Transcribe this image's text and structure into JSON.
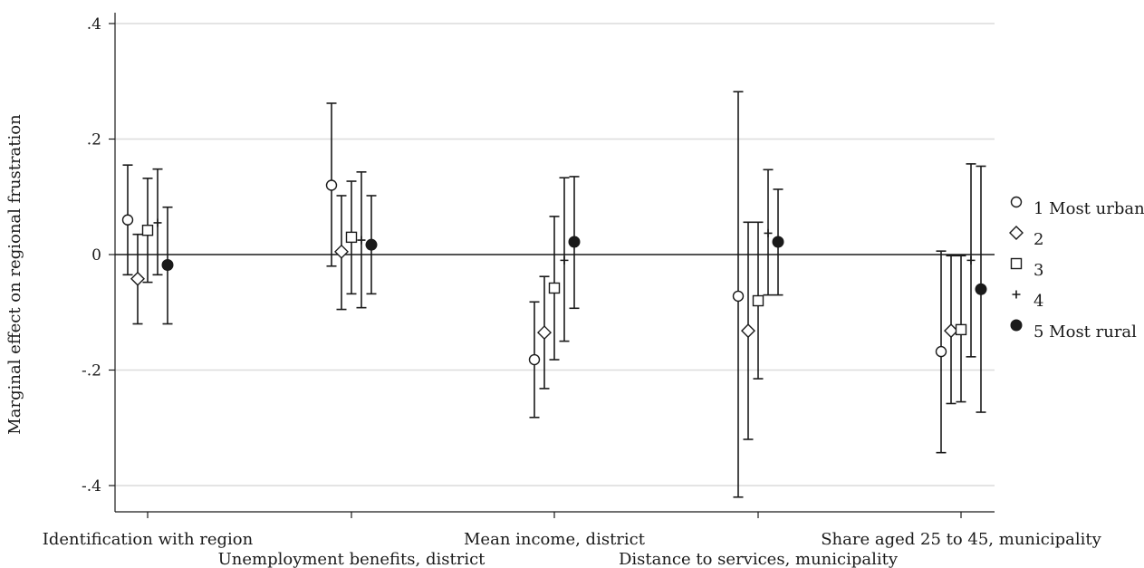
{
  "chart_data": {
    "type": "scatter",
    "title": "",
    "xlabel": "",
    "ylabel": "Marginal effect on regional frustration",
    "ylim": [
      -0.44,
      0.44
    ],
    "yticks": [
      0.4,
      0.2,
      0,
      -0.2,
      -0.4
    ],
    "ytick_labels": [
      ".4",
      ".2",
      "0",
      "-.2",
      "-.4"
    ],
    "grid": true,
    "zero_line": true,
    "legend_position": "right",
    "categories": [
      "Identification with region",
      "Unemployment benefits, district",
      "Mean income, district",
      "Distance to services, municipality",
      "Share aged 25 to 45, municipality"
    ],
    "series": [
      {
        "name": "1 Most urban",
        "marker": "circle",
        "points": [
          {
            "y": 0.06,
            "lo": -0.035,
            "hi": 0.155
          },
          {
            "y": 0.12,
            "lo": -0.02,
            "hi": 0.262
          },
          {
            "y": -0.182,
            "lo": -0.282,
            "hi": -0.082
          },
          {
            "y": -0.072,
            "lo": -0.42,
            "hi": 0.282
          },
          {
            "y": -0.168,
            "lo": -0.343,
            "hi": 0.006
          }
        ]
      },
      {
        "name": "2",
        "marker": "diamond",
        "points": [
          {
            "y": -0.042,
            "lo": -0.12,
            "hi": 0.035
          },
          {
            "y": 0.005,
            "lo": -0.095,
            "hi": 0.102
          },
          {
            "y": -0.135,
            "lo": -0.232,
            "hi": -0.038
          },
          {
            "y": -0.132,
            "lo": -0.32,
            "hi": 0.056
          },
          {
            "y": -0.132,
            "lo": -0.258,
            "hi": -0.002
          }
        ]
      },
      {
        "name": "3",
        "marker": "square",
        "points": [
          {
            "y": 0.042,
            "lo": -0.048,
            "hi": 0.132
          },
          {
            "y": 0.03,
            "lo": -0.068,
            "hi": 0.127
          },
          {
            "y": -0.058,
            "lo": -0.182,
            "hi": 0.066
          },
          {
            "y": -0.08,
            "lo": -0.215,
            "hi": 0.056
          },
          {
            "y": -0.13,
            "lo": -0.255,
            "hi": -0.002
          }
        ]
      },
      {
        "name": "4",
        "marker": "plus",
        "points": [
          {
            "y": 0.055,
            "lo": -0.035,
            "hi": 0.148
          },
          {
            "y": 0.025,
            "lo": -0.092,
            "hi": 0.143
          },
          {
            "y": -0.01,
            "lo": -0.15,
            "hi": 0.133
          },
          {
            "y": 0.037,
            "lo": -0.07,
            "hi": 0.147
          },
          {
            "y": -0.01,
            "lo": -0.177,
            "hi": 0.157
          }
        ]
      },
      {
        "name": "5 Most rural",
        "marker": "filled-circle",
        "points": [
          {
            "y": -0.018,
            "lo": -0.12,
            "hi": 0.082
          },
          {
            "y": 0.017,
            "lo": -0.068,
            "hi": 0.102
          },
          {
            "y": 0.022,
            "lo": -0.093,
            "hi": 0.135
          },
          {
            "y": 0.022,
            "lo": -0.07,
            "hi": 0.113
          },
          {
            "y": -0.06,
            "lo": -0.273,
            "hi": 0.153
          }
        ]
      }
    ]
  }
}
